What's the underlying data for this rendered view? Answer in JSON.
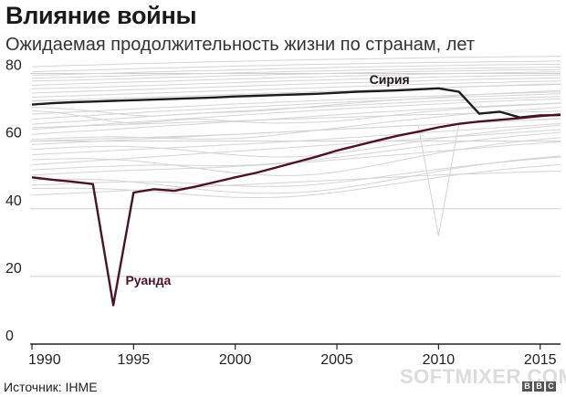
{
  "title": "Влияние войны",
  "subtitle": "Ожидаемая продолжительность жизни по странам, лет",
  "source": "Источник: IHME",
  "watermark": "SOFTMIXER.COM",
  "logo_letters": [
    "B",
    "B",
    "C"
  ],
  "colors": {
    "syria": "#1f1a1c",
    "rwanda": "#4a1129",
    "background_lines": "#d4d4d4",
    "grid": "#cfcfcf",
    "axis": "#222222"
  },
  "chart_data": {
    "type": "line",
    "title": "Влияние войны",
    "subtitle": "Ожидаемая продолжительность жизни по странам, лет",
    "xlabel": "",
    "ylabel": "",
    "xlim": [
      1990,
      2016
    ],
    "ylim": [
      0,
      85
    ],
    "x_ticks": [
      1990,
      1995,
      2000,
      2005,
      2010,
      2015
    ],
    "y_ticks": [
      0,
      20,
      40,
      60,
      80
    ],
    "grid": true,
    "x": [
      1990,
      1991,
      1992,
      1993,
      1994,
      1995,
      1996,
      1997,
      1998,
      1999,
      2000,
      2001,
      2002,
      2003,
      2004,
      2005,
      2006,
      2007,
      2008,
      2009,
      2010,
      2011,
      2012,
      2013,
      2014,
      2015,
      2016
    ],
    "series": [
      {
        "name": "Сирия",
        "values": [
          70.8,
          71.2,
          71.5,
          71.7,
          71.9,
          72.1,
          72.3,
          72.5,
          72.7,
          72.9,
          73.2,
          73.4,
          73.6,
          73.8,
          74.0,
          74.3,
          74.6,
          74.8,
          75.0,
          75.3,
          75.6,
          74.6,
          68.1,
          68.7,
          67.0,
          67.6,
          67.7
        ]
      },
      {
        "name": "Руанда",
        "values": [
          49.3,
          48.6,
          48.0,
          47.3,
          11.5,
          44.8,
          45.8,
          45.3,
          46.5,
          47.9,
          49.3,
          50.6,
          52.2,
          53.8,
          55.4,
          57.2,
          58.7,
          60.2,
          61.6,
          62.8,
          64.1,
          65.1,
          65.8,
          66.3,
          66.8,
          67.4,
          67.9
        ]
      }
    ],
    "background_series_note": "",
    "background_series": [
      [
        82.0,
        82.2,
        82.4,
        82.5,
        82.7,
        82.9,
        83.0,
        83.2,
        83.3,
        83.5,
        83.6,
        83.7,
        83.9,
        84.0,
        84.1,
        84.2,
        84.3,
        84.4,
        84.5,
        84.6,
        84.7,
        84.8,
        84.8,
        84.9,
        85.0,
        85.0,
        85.1
      ],
      [
        80.5,
        80.7,
        80.9,
        81.0,
        81.2,
        81.4,
        81.6,
        81.7,
        81.9,
        82.0,
        82.2,
        82.3,
        82.4,
        82.6,
        82.7,
        82.8,
        82.9,
        83.0,
        83.1,
        83.2,
        83.3,
        83.3,
        83.4,
        83.5,
        83.5,
        83.6,
        83.7
      ],
      [
        79.5,
        79.6,
        79.8,
        80.0,
        80.1,
        80.3,
        80.5,
        80.6,
        80.8,
        80.9,
        81.1,
        81.2,
        81.4,
        81.5,
        81.6,
        81.8,
        81.9,
        82.0,
        82.1,
        82.2,
        82.3,
        82.4,
        82.5,
        82.6,
        82.6,
        82.7,
        82.8
      ],
      [
        78.6,
        78.8,
        78.9,
        79.1,
        79.2,
        79.4,
        79.6,
        79.7,
        79.9,
        80.0,
        80.2,
        80.3,
        80.5,
        80.6,
        80.7,
        80.9,
        81.0,
        81.1,
        81.2,
        81.3,
        81.4,
        81.5,
        81.6,
        81.7,
        81.7,
        81.8,
        81.9
      ],
      [
        77.8,
        77.9,
        78.0,
        78.2,
        78.3,
        78.5,
        78.7,
        78.9,
        79.0,
        79.2,
        79.4,
        79.5,
        79.7,
        79.8,
        79.9,
        80.1,
        80.2,
        80.3,
        80.5,
        80.6,
        80.7,
        80.8,
        80.9,
        81.0,
        81.1,
        81.1,
        81.2
      ],
      [
        76.5,
        76.7,
        76.9,
        77.1,
        77.3,
        77.5,
        77.6,
        77.8,
        78.0,
        78.2,
        78.4,
        78.5,
        78.7,
        78.9,
        79.0,
        79.2,
        79.3,
        79.5,
        79.6,
        79.8,
        79.9,
        80.0,
        80.1,
        80.2,
        80.3,
        80.4,
        80.5
      ],
      [
        75.5,
        75.6,
        75.8,
        75.9,
        76.1,
        76.3,
        76.5,
        76.7,
        76.9,
        77.1,
        77.3,
        77.5,
        77.7,
        77.9,
        78.0,
        78.2,
        78.4,
        78.5,
        78.7,
        78.8,
        79.0,
        79.1,
        79.2,
        79.3,
        79.4,
        79.5,
        79.6
      ],
      [
        74.2,
        74.4,
        74.6,
        74.8,
        75.0,
        75.2,
        75.4,
        75.6,
        75.8,
        76.0,
        76.2,
        76.4,
        76.6,
        76.8,
        77.0,
        77.2,
        77.3,
        77.5,
        77.7,
        77.8,
        78.0,
        78.1,
        78.3,
        78.4,
        78.5,
        78.6,
        78.7
      ],
      [
        73.0,
        73.2,
        73.4,
        73.6,
        73.8,
        74.0,
        74.2,
        74.4,
        74.6,
        74.8,
        75.0,
        75.2,
        75.4,
        75.6,
        75.8,
        76.0,
        76.2,
        76.4,
        76.6,
        76.8,
        77.0,
        77.1,
        77.3,
        77.4,
        77.6,
        77.7,
        77.8
      ],
      [
        71.8,
        72.0,
        72.2,
        72.4,
        72.6,
        72.8,
        73.0,
        73.2,
        73.4,
        73.6,
        73.8,
        74.0,
        74.2,
        74.4,
        74.6,
        74.8,
        75.0,
        75.2,
        75.4,
        75.6,
        75.8,
        76.0,
        76.2,
        76.3,
        76.5,
        76.6,
        76.8
      ],
      [
        70.0,
        69.8,
        69.4,
        68.9,
        68.2,
        67.6,
        67.4,
        67.8,
        68.2,
        68.4,
        68.6,
        68.9,
        69.3,
        69.8,
        70.3,
        70.8,
        71.3,
        71.8,
        72.2,
        72.6,
        73.0,
        73.4,
        73.8,
        74.1,
        74.4,
        74.7,
        75.0
      ],
      [
        69.0,
        68.6,
        67.8,
        66.9,
        65.8,
        65.2,
        65.6,
        66.2,
        66.6,
        66.3,
        65.8,
        65.5,
        65.3,
        65.4,
        65.6,
        65.9,
        66.5,
        67.2,
        67.8,
        68.5,
        69.0,
        69.5,
        70.0,
        70.3,
        70.6,
        70.9,
        71.2
      ],
      [
        68.0,
        68.3,
        68.6,
        68.9,
        69.2,
        69.5,
        69.8,
        70.1,
        70.4,
        70.7,
        71.0,
        71.2,
        71.5,
        71.7,
        72.0,
        72.2,
        72.5,
        72.7,
        73.0,
        73.2,
        73.4,
        73.6,
        73.8,
        74.0,
        74.2,
        74.4,
        74.5
      ],
      [
        66.5,
        66.9,
        67.3,
        67.6,
        68.0,
        68.3,
        68.7,
        69.0,
        69.3,
        69.6,
        69.9,
        70.2,
        70.5,
        70.8,
        71.1,
        71.4,
        71.7,
        72.0,
        72.2,
        72.5,
        72.8,
        73.0,
        73.2,
        73.4,
        73.6,
        73.8,
        74.0
      ],
      [
        65.0,
        65.4,
        65.8,
        66.2,
        66.6,
        67.0,
        67.4,
        67.8,
        68.1,
        68.5,
        68.8,
        69.1,
        69.5,
        69.8,
        70.1,
        70.4,
        70.7,
        71.0,
        71.3,
        71.6,
        71.9,
        72.1,
        72.4,
        72.6,
        72.8,
        73.0,
        73.2
      ],
      [
        63.5,
        63.9,
        64.3,
        64.8,
        65.2,
        65.6,
        66.0,
        66.4,
        66.8,
        67.2,
        67.6,
        68.0,
        68.4,
        68.7,
        69.1,
        69.4,
        69.8,
        70.1,
        70.4,
        70.7,
        71.0,
        71.3,
        71.6,
        71.8,
        72.1,
        72.3,
        72.5
      ],
      [
        62.0,
        62.4,
        62.8,
        63.1,
        63.5,
        63.9,
        64.3,
        64.7,
        65.0,
        65.4,
        65.8,
        66.2,
        66.6,
        67.0,
        67.4,
        67.8,
        68.2,
        68.6,
        68.9,
        69.3,
        69.6,
        69.9,
        70.2,
        70.5,
        70.8,
        71.0,
        71.3
      ],
      [
        60.5,
        60.8,
        61.0,
        61.2,
        61.3,
        61.2,
        61.0,
        60.8,
        60.6,
        60.6,
        60.8,
        61.2,
        61.8,
        62.5,
        63.2,
        63.9,
        64.6,
        65.3,
        66.0,
        66.6,
        67.2,
        67.8,
        68.3,
        68.8,
        69.2,
        69.6,
        70.0
      ],
      [
        59.0,
        59.3,
        59.6,
        59.9,
        60.2,
        60.5,
        60.8,
        61.1,
        61.4,
        61.7,
        62.0,
        62.3,
        62.6,
        62.9,
        63.2,
        63.5,
        63.8,
        64.1,
        64.4,
        64.7,
        65.0,
        65.3,
        65.6,
        65.8,
        66.1,
        66.3,
        66.6
      ],
      [
        57.5,
        57.9,
        58.2,
        58.4,
        58.5,
        58.4,
        58.1,
        57.6,
        57.0,
        56.4,
        55.9,
        55.5,
        55.3,
        55.4,
        55.8,
        56.4,
        57.2,
        58.1,
        59.0,
        59.9,
        60.8,
        61.6,
        62.3,
        63.0,
        63.6,
        64.2,
        64.7
      ],
      [
        56.0,
        56.3,
        56.6,
        56.9,
        57.2,
        57.5,
        57.8,
        58.1,
        58.4,
        58.7,
        59.0,
        59.3,
        59.7,
        60.0,
        60.4,
        60.8,
        61.2,
        61.6,
        62.0,
        62.4,
        62.8,
        63.2,
        63.6,
        64.0,
        64.4,
        64.8,
        65.2
      ],
      [
        54.5,
        54.7,
        54.8,
        54.8,
        54.6,
        54.2,
        53.6,
        52.9,
        52.1,
        51.3,
        50.6,
        50.1,
        49.8,
        49.8,
        50.2,
        50.9,
        51.9,
        53.0,
        54.2,
        55.4,
        56.5,
        57.5,
        58.4,
        59.2,
        59.9,
        60.5,
        61.0
      ],
      [
        53.0,
        53.4,
        53.8,
        54.2,
        54.6,
        55.0,
        55.4,
        55.8,
        56.2,
        56.6,
        57.0,
        57.4,
        57.8,
        58.2,
        58.6,
        59.0,
        59.4,
        59.8,
        60.2,
        60.6,
        61.0,
        61.4,
        61.8,
        62.2,
        62.6,
        63.0,
        63.4
      ],
      [
        51.5,
        51.8,
        52.1,
        52.4,
        52.6,
        52.8,
        52.9,
        52.9,
        52.8,
        52.7,
        52.8,
        53.0,
        53.4,
        53.9,
        54.5,
        55.2,
        55.9,
        56.7,
        57.5,
        58.3,
        59.0,
        59.7,
        60.4,
        61.0,
        61.6,
        62.1,
        62.6
      ],
      [
        50.0,
        50.3,
        50.6,
        50.9,
        51.2,
        51.4,
        51.6,
        51.8,
        52.0,
        52.2,
        52.5,
        52.8,
        53.2,
        53.6,
        54.0,
        54.5,
        55.0,
        55.5,
        56.0,
        56.5,
        57.0,
        57.5,
        58.0,
        58.5,
        59.0,
        59.4,
        59.8
      ],
      [
        48.5,
        48.7,
        48.8,
        48.7,
        48.4,
        47.9,
        47.3,
        46.6,
        45.9,
        45.3,
        44.9,
        44.6,
        44.6,
        44.8,
        45.2,
        45.9,
        46.8,
        47.8,
        48.9,
        50.0,
        51.1,
        52.1,
        53.0,
        53.8,
        54.5,
        55.1,
        55.6
      ],
      [
        47.0,
        47.2,
        47.5,
        47.7,
        47.9,
        48.0,
        48.0,
        47.8,
        47.5,
        47.1,
        46.8,
        46.6,
        46.6,
        46.8,
        47.2,
        47.8,
        48.5,
        49.3,
        50.1,
        50.9,
        51.7,
        52.4,
        53.1,
        53.7,
        54.3,
        54.8,
        55.3
      ],
      [
        46.0,
        46.1,
        46.1,
        46.0,
        45.8,
        45.5,
        45.1,
        44.6,
        44.1,
        43.7,
        43.4,
        43.3,
        43.4,
        43.7,
        44.2,
        44.9,
        45.7,
        46.6,
        47.5,
        48.4,
        49.3,
        50.1,
        50.8,
        51.5,
        52.1,
        52.6,
        53.1
      ],
      [
        44.0,
        44.3,
        44.6,
        44.9,
        45.2,
        45.5,
        45.8,
        46.1,
        46.4,
        46.7,
        47.0,
        47.3,
        47.6,
        47.9,
        48.2,
        48.5,
        48.8,
        49.1,
        49.4,
        49.7,
        50.0,
        50.2,
        50.4,
        50.6,
        50.8,
        51.0,
        51.1
      ],
      [
        72.0,
        72.1,
        72.2,
        72.4,
        72.6,
        72.8,
        73.0,
        73.2,
        73.4,
        73.6,
        73.8,
        74.0,
        74.2,
        74.4,
        74.6,
        74.8,
        75.0,
        75.2,
        75.4,
        75.6,
        75.8,
        76.0,
        76.2,
        76.4,
        76.6,
        76.8,
        76.9
      ],
      [
        64.0,
        64.2,
        64.4,
        64.6,
        64.8,
        65.0,
        65.2,
        65.4,
        65.6,
        65.8,
        66.0,
        66.2,
        66.4,
        66.6,
        66.8,
        67.0,
        67.2,
        67.4,
        67.6,
        67.8,
        67.9,
        68.1,
        68.3,
        68.4,
        68.6,
        68.7,
        68.9
      ],
      [
        60.0,
        60.2,
        60.4,
        60.6,
        60.8,
        61.0,
        61.2,
        61.4,
        61.6,
        61.8,
        62.0,
        62.3,
        62.6,
        62.9,
        63.2,
        63.5,
        63.8,
        64.1,
        64.4,
        64.7,
        32.0,
        65.2,
        65.5,
        65.8,
        66.1,
        66.4,
        66.7
      ]
    ],
    "annotations": [
      {
        "text": "Сирия",
        "series": "Сирия"
      },
      {
        "text": "Руанда",
        "series": "Руанда"
      }
    ]
  }
}
